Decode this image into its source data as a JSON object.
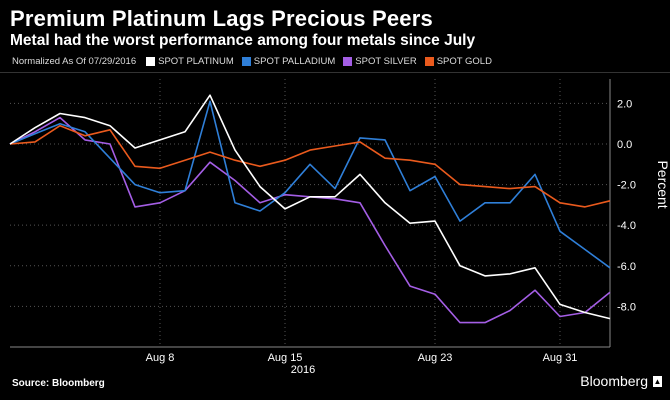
{
  "header": {
    "title": "Premium Platinum Lags Precious Peers",
    "subtitle": "Metal had the worst performance among four metals since July"
  },
  "legend": {
    "note": "Normalized As Of 07/29/2016",
    "items": [
      {
        "label": "SPOT PLATINUM",
        "color": "#ffffff"
      },
      {
        "label": "SPOT PALLADIUM",
        "color": "#2f7fd8"
      },
      {
        "label": "SPOT SILVER",
        "color": "#a45ee5"
      },
      {
        "label": "SPOT GOLD",
        "color": "#ea5a1d"
      }
    ]
  },
  "footer": {
    "source": "Source: Bloomberg",
    "brand": "Bloomberg"
  },
  "chart_data": {
    "type": "line",
    "title": "Premium Platinum Lags Precious Peers",
    "subtitle": "Metal had the worst performance among four metals since July",
    "xlabel": "2016",
    "ylabel": "Percent",
    "ylim": [
      -10,
      3.2
    ],
    "yticks": [
      2.0,
      0.0,
      -2.0,
      -4.0,
      -6.0,
      -8.0
    ],
    "ytick_labels": [
      "2.0",
      "0.0",
      "-2.0",
      "-4.0",
      "-6.0",
      "-8.0"
    ],
    "x": [
      "07/29",
      "08/01",
      "08/02",
      "08/03",
      "08/04",
      "08/05",
      "08/08",
      "08/09",
      "08/10",
      "08/11",
      "08/12",
      "08/15",
      "08/16",
      "08/17",
      "08/18",
      "08/19",
      "08/22",
      "08/23",
      "08/24",
      "08/25",
      "08/26",
      "08/29",
      "08/30",
      "08/31",
      "09/01"
    ],
    "xticks": [
      {
        "index": 6,
        "label": "Aug 8"
      },
      {
        "index": 11,
        "label": "Aug 15"
      },
      {
        "index": 17,
        "label": "Aug 23"
      },
      {
        "index": 22,
        "label": "Aug 31"
      }
    ],
    "legend_note": "Normalized As Of 07/29/2016",
    "series": [
      {
        "name": "SPOT PLATINUM",
        "color": "#ffffff",
        "values": [
          0.0,
          0.8,
          1.5,
          1.3,
          0.9,
          -0.2,
          0.2,
          0.6,
          2.4,
          -0.3,
          -2.1,
          -3.2,
          -2.6,
          -2.6,
          -1.5,
          -2.9,
          -3.9,
          -3.8,
          -6.0,
          -6.5,
          -6.4,
          -6.1,
          -7.9,
          -8.3,
          -8.6
        ]
      },
      {
        "name": "SPOT PALLADIUM",
        "color": "#2f7fd8",
        "values": [
          0.0,
          0.5,
          1.0,
          0.6,
          -0.7,
          -2.0,
          -2.4,
          -2.3,
          2.1,
          -2.9,
          -3.3,
          -2.4,
          -1.0,
          -2.2,
          0.3,
          0.2,
          -2.3,
          -1.6,
          -3.8,
          -2.9,
          -2.9,
          -1.5,
          -4.3,
          -5.2,
          -6.1
        ]
      },
      {
        "name": "SPOT SILVER",
        "color": "#a45ee5",
        "values": [
          0.0,
          0.6,
          1.3,
          0.2,
          0.0,
          -3.1,
          -2.9,
          -2.3,
          -0.9,
          -1.8,
          -2.9,
          -2.5,
          -2.6,
          -2.7,
          -2.9,
          -5.0,
          -7.0,
          -7.4,
          -8.8,
          -8.8,
          -8.2,
          -7.2,
          -8.5,
          -8.3,
          -7.3
        ]
      },
      {
        "name": "SPOT GOLD",
        "color": "#ea5a1d",
        "values": [
          0.0,
          0.1,
          0.9,
          0.4,
          0.7,
          -1.1,
          -1.2,
          -0.8,
          -0.4,
          -0.8,
          -1.1,
          -0.8,
          -0.3,
          -0.1,
          0.1,
          -0.7,
          -0.8,
          -1.0,
          -2.0,
          -2.1,
          -2.2,
          -2.1,
          -2.9,
          -3.1,
          -2.8
        ]
      }
    ]
  }
}
